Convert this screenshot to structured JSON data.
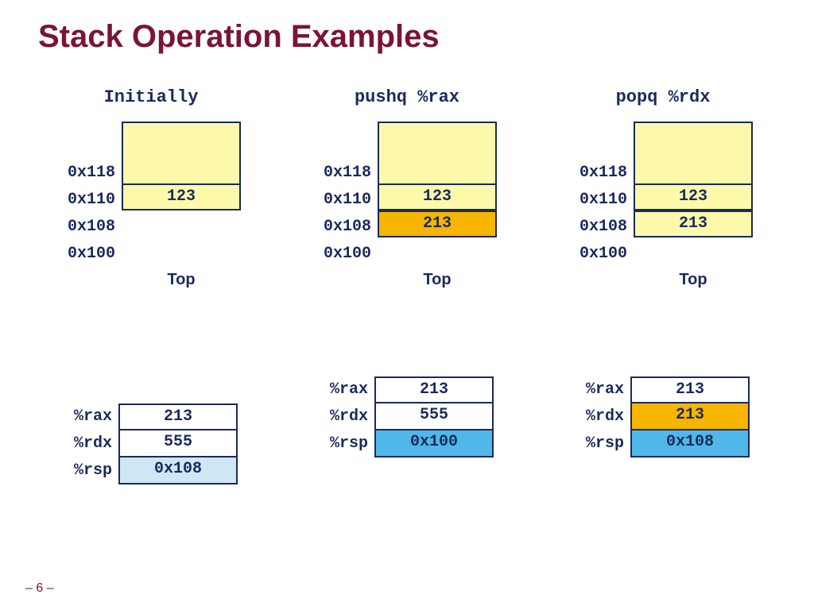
{
  "title": "Stack Operation Examples",
  "title_color": "#7b1436",
  "page_number": "– 6 –",
  "page_number_color": "#7b1436",
  "text_color": "#1a2a5c",
  "border_color": "#1a2a5c",
  "bg_yellow": "#fcf9ab",
  "bg_orange": "#f7b500",
  "bg_white": "#ffffff",
  "bg_blue_light": "#cfe6f5",
  "bg_blue": "#4fb8e8",
  "top_label": "Top",
  "columns": [
    {
      "heading": "Initially",
      "addresses": [
        "0x118",
        "0x110",
        "0x108",
        "0x100"
      ],
      "stack": {
        "upper_bg": "#fcf9ab",
        "cells": [
          {
            "value": "123",
            "bg": "#fcf9ab"
          }
        ]
      },
      "top_after_cell_index": 0,
      "registers": [
        {
          "name": "%rax",
          "value": "213",
          "bg": "#ffffff"
        },
        {
          "name": "%rdx",
          "value": "555",
          "bg": "#ffffff"
        },
        {
          "name": "%rsp",
          "value": "0x108",
          "bg": "#cfe6f5"
        }
      ]
    },
    {
      "heading": "pushq %rax",
      "addresses": [
        "0x118",
        "0x110",
        "0x108",
        "0x100"
      ],
      "stack": {
        "upper_bg": "#fcf9ab",
        "cells": [
          {
            "value": "123",
            "bg": "#fcf9ab"
          },
          {
            "value": "213",
            "bg": "#f7b500"
          }
        ]
      },
      "top_after_cell_index": 1,
      "registers": [
        {
          "name": "%rax",
          "value": "213",
          "bg": "#ffffff"
        },
        {
          "name": "%rdx",
          "value": "555",
          "bg": "#ffffff"
        },
        {
          "name": "%rsp",
          "value": "0x100",
          "bg": "#4fb8e8"
        }
      ]
    },
    {
      "heading": "popq %rdx",
      "addresses": [
        "0x118",
        "0x110",
        "0x108",
        "0x100"
      ],
      "stack": {
        "upper_bg": "#fcf9ab",
        "cells": [
          {
            "value": "123",
            "bg": "#fcf9ab"
          },
          {
            "value": "213",
            "bg": "#fcf9ab"
          }
        ]
      },
      "top_after_cell_index": 1,
      "registers": [
        {
          "name": "%rax",
          "value": "213",
          "bg": "#ffffff"
        },
        {
          "name": "%rdx",
          "value": "213",
          "bg": "#f7b500"
        },
        {
          "name": "%rsp",
          "value": "0x108",
          "bg": "#4fb8e8"
        }
      ]
    }
  ]
}
